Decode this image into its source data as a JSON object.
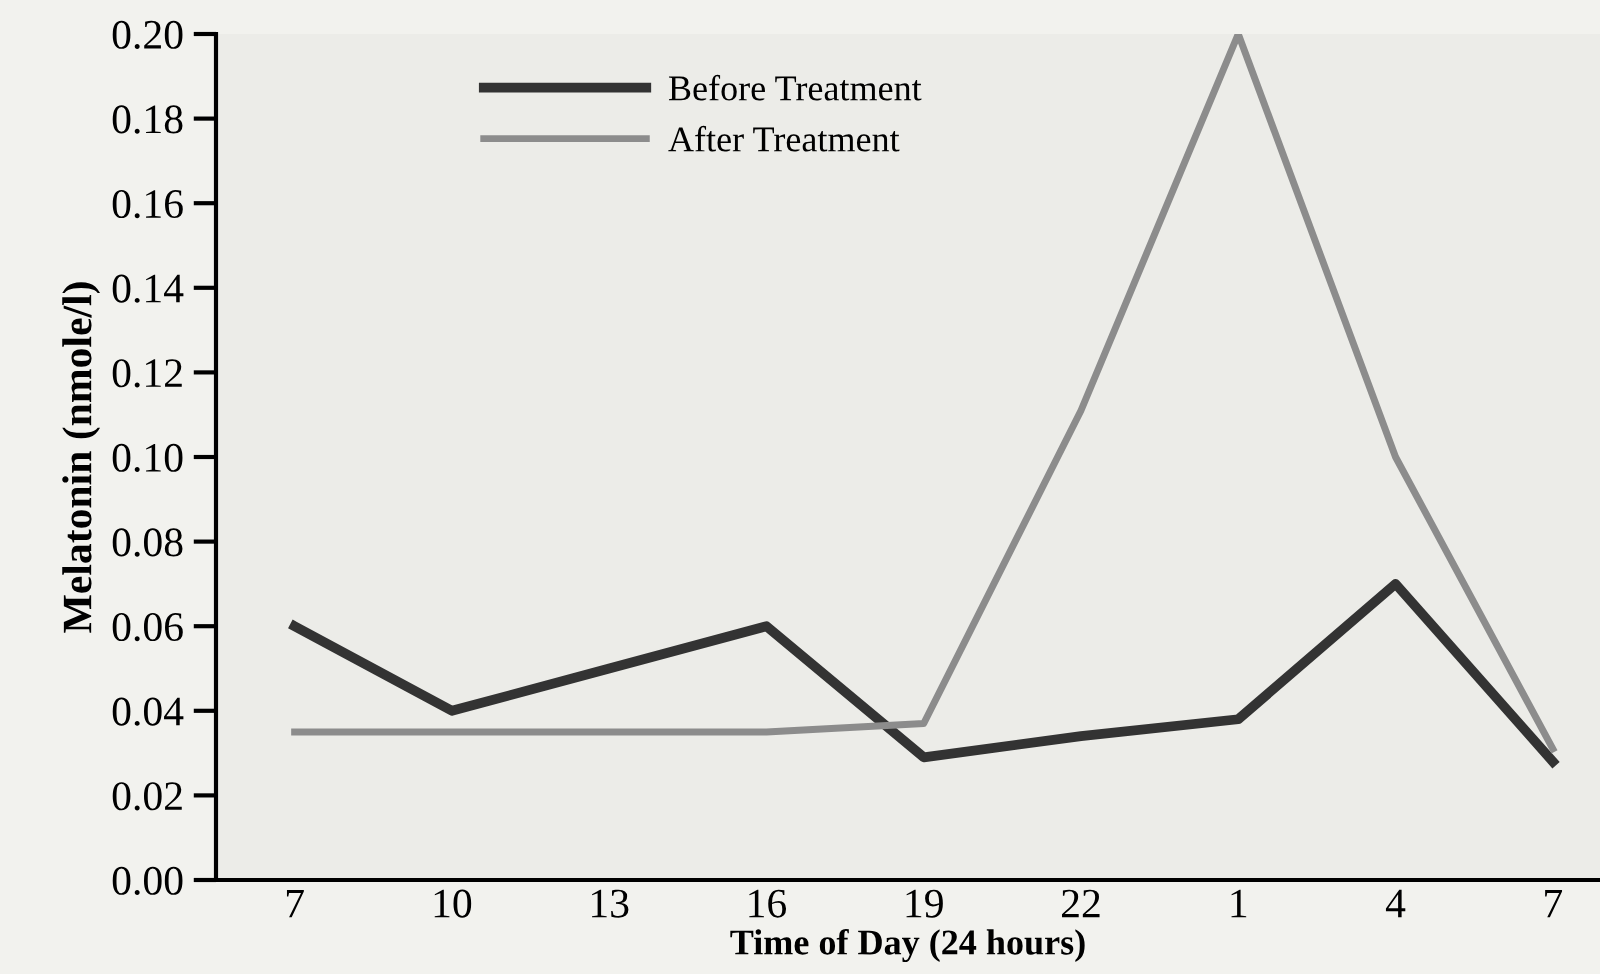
{
  "chart_data": {
    "type": "line",
    "xlabel": "Time of Day (24 hours)",
    "ylabel": "Melatonin (nmole/l)",
    "categories": [
      "7",
      "10",
      "13",
      "16",
      "19",
      "22",
      "1",
      "4",
      "7"
    ],
    "series": [
      {
        "name": "Before Treatment",
        "color": "#333333",
        "values": [
          0.06,
          0.04,
          0.05,
          0.06,
          0.029,
          0.034,
          0.038,
          0.07,
          0.028
        ]
      },
      {
        "name": "After Treatment",
        "color": "#8c8c8c",
        "values": [
          0.035,
          0.035,
          0.035,
          0.035,
          0.037,
          0.111,
          0.2,
          0.1,
          0.031
        ]
      }
    ],
    "ylim": [
      0,
      0.2
    ],
    "yticks": [
      {
        "value": 0,
        "label": "0.00"
      },
      {
        "value": 0.02,
        "label": "0.02"
      },
      {
        "value": 0.04,
        "label": "0.04"
      },
      {
        "value": 0.06,
        "label": "0.06"
      },
      {
        "value": 0.08,
        "label": "0.08"
      },
      {
        "value": 0.1,
        "label": "0.10"
      },
      {
        "value": 0.12,
        "label": "0.12"
      },
      {
        "value": 0.14,
        "label": "0.14"
      },
      {
        "value": 0.16,
        "label": "0.16"
      },
      {
        "value": 0.18,
        "label": "0.18"
      },
      {
        "value": 0.2,
        "label": "0.20"
      }
    ],
    "legend": "top left",
    "grid": false,
    "marker": "none",
    "line_style": "solid"
  }
}
